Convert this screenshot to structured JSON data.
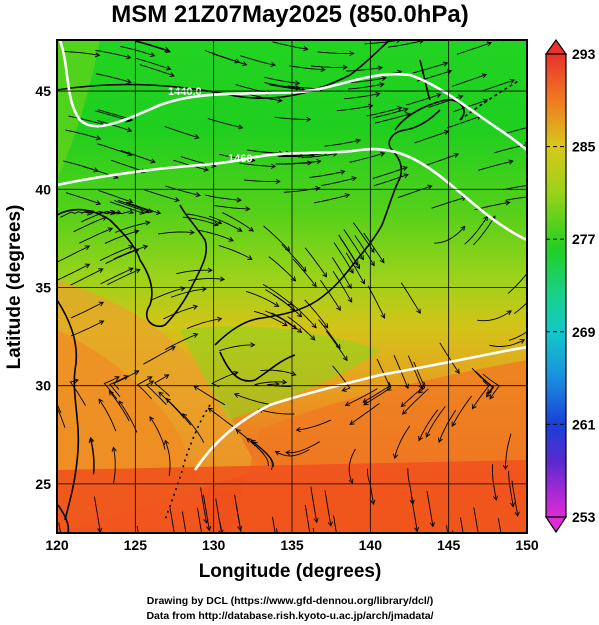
{
  "title": "MSM 21Z07May2025 (850.0hPa)",
  "xlabel": "Longitude (degrees)",
  "ylabel": "Latitude  (degrees)",
  "xticks": [
    "120",
    "125",
    "130",
    "135",
    "140",
    "145",
    "150"
  ],
  "yticks": [
    "25",
    "30",
    "35",
    "40",
    "45"
  ],
  "colorbar": {
    "ticks": [
      "293",
      "285",
      "277",
      "269",
      "261",
      "253"
    ],
    "min": 253,
    "max": 293
  },
  "contour_labels": [
    "1440.0",
    "1460"
  ],
  "credits": {
    "line1": "Drawing by DCL (https://www.gfd-dennou.org/library/dcl/)",
    "line2": "Data from http://database.rish.kyoto-u.ac.jp/arch/jmadata/"
  },
  "chart_data": {
    "type": "heatmap",
    "variable_range": [
      253,
      293
    ],
    "xlim": [
      120,
      150
    ],
    "ylim": [
      22.5,
      47.6
    ],
    "grid": true,
    "legend": "colorbar-right"
  }
}
